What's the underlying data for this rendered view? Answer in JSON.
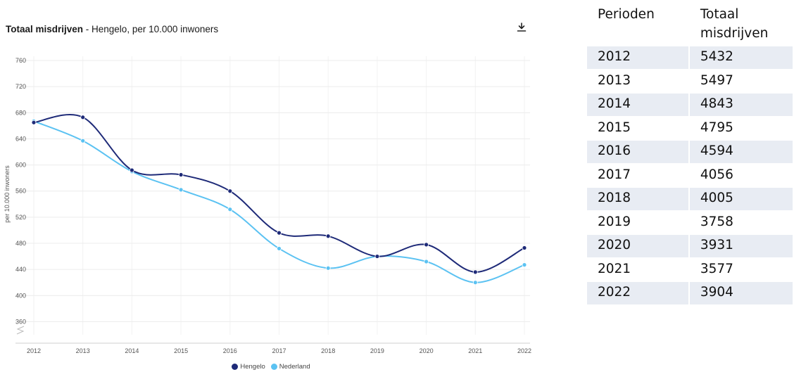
{
  "chart": {
    "title_bold": "Totaal misdrijven",
    "title_rest": " - Hengelo, per 10.000 inwoners",
    "download_icon": "download-icon"
  },
  "chart_data": {
    "type": "line",
    "x": [
      "2012",
      "2013",
      "2014",
      "2015",
      "2016",
      "2017",
      "2018",
      "2019",
      "2020",
      "2021",
      "2022"
    ],
    "series": [
      {
        "name": "Hengelo",
        "color": "#1e2a78",
        "values": [
          665,
          673,
          592,
          585,
          560,
          496,
          491,
          460,
          478,
          436,
          473
        ]
      },
      {
        "name": "Nederland",
        "color": "#5bc2f2",
        "values": [
          667,
          637,
          590,
          562,
          532,
          472,
          442,
          460,
          452,
          420,
          447
        ]
      }
    ],
    "yticks": [
      360,
      400,
      440,
      480,
      520,
      560,
      600,
      640,
      680,
      720,
      760
    ],
    "ylabel": "per 10.000 inwoners",
    "ylim": [
      340,
      760
    ],
    "grid": true,
    "legend_position": "bottom"
  },
  "table": {
    "headers": [
      "Perioden",
      "Totaal misdrijven"
    ],
    "rows": [
      [
        "2012",
        "5432"
      ],
      [
        "2013",
        "5497"
      ],
      [
        "2014",
        "4843"
      ],
      [
        "2015",
        "4795"
      ],
      [
        "2016",
        "4594"
      ],
      [
        "2017",
        "4056"
      ],
      [
        "2018",
        "4005"
      ],
      [
        "2019",
        "3758"
      ],
      [
        "2020",
        "3931"
      ],
      [
        "2021",
        "3577"
      ],
      [
        "2022",
        "3904"
      ]
    ]
  }
}
